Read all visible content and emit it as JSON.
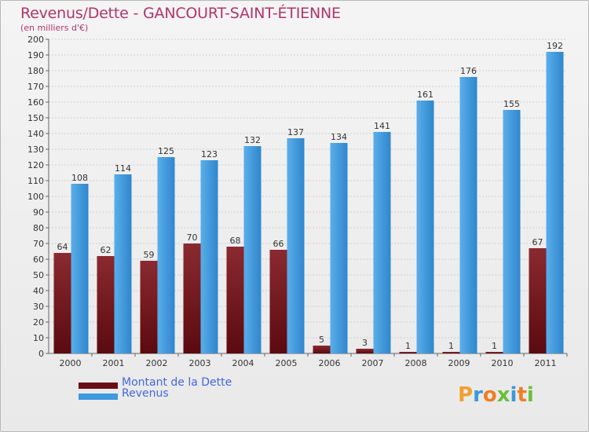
{
  "title": "Revenus/Dette - GANCOURT-SAINT-ÉTIENNE",
  "subtitle": "(en milliers d'€)",
  "brand": {
    "letters": [
      "P",
      "r",
      "o",
      "x",
      "i",
      "t",
      "i"
    ],
    "colors": [
      "#f0a030",
      "#3a9ad9",
      "#ef7e22",
      "#6bbf3a",
      "#3a9ad9",
      "#ef7e22",
      "#6bbf3a"
    ]
  },
  "colors": {
    "dette": "#7a1a22",
    "revenus": "#3d99e0",
    "title": "#b0356a",
    "legend_text": "#4466dd"
  },
  "chart_data": {
    "type": "bar",
    "title": "Revenus/Dette - GANCOURT-SAINT-ÉTIENNE",
    "ylabel": "(en milliers d'€)",
    "xlabel": "",
    "categories": [
      "2000",
      "2001",
      "2002",
      "2003",
      "2004",
      "2005",
      "2006",
      "2007",
      "2008",
      "2009",
      "2010",
      "2011"
    ],
    "series": [
      {
        "name": "Montant de la Dette",
        "color": "#7a1a22",
        "values": [
          64,
          62,
          59,
          70,
          68,
          66,
          5,
          3,
          1,
          1,
          1,
          67
        ]
      },
      {
        "name": "Revenus",
        "color": "#3d99e0",
        "values": [
          108,
          114,
          125,
          123,
          132,
          137,
          134,
          141,
          161,
          176,
          155,
          192
        ]
      }
    ],
    "ylim": [
      0,
      200
    ],
    "ytick_step": 10,
    "grid": true,
    "legend": "bottom-left"
  }
}
